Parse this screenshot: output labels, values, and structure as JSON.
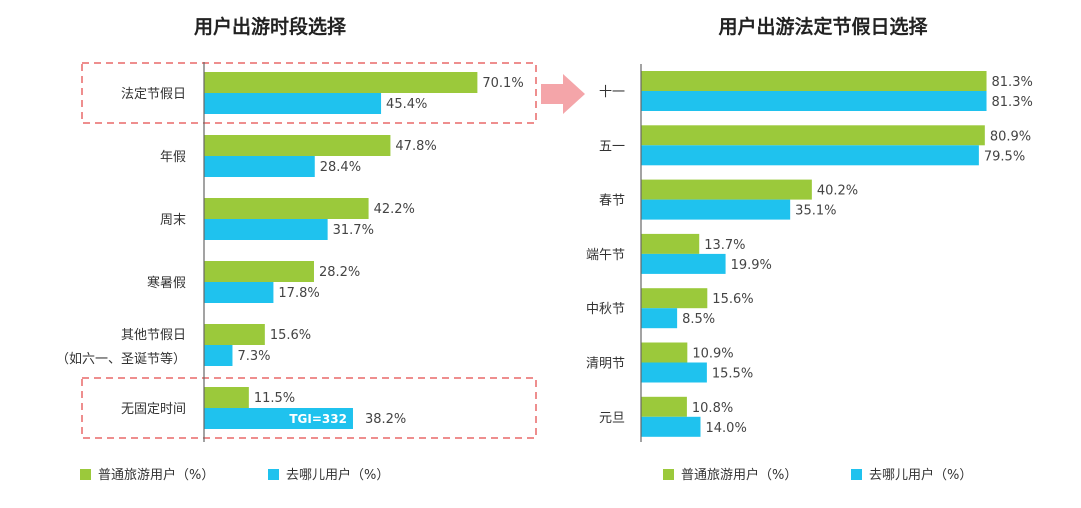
{
  "colors": {
    "green": "#9BC93B",
    "blue": "#1FC2EE",
    "dash": "#EE8E8E",
    "arrow": "#F4A5A9",
    "axis": "#666666"
  },
  "legend": {
    "series1": "普通旅游用户（%）",
    "series2": "去哪儿用户（%）"
  },
  "chart_data": [
    {
      "type": "bar",
      "orientation": "horizontal",
      "title": "用户出游时段选择",
      "categories": [
        {
          "label": "法定节假日"
        },
        {
          "label": "年假"
        },
        {
          "label": "周末"
        },
        {
          "label": "寒暑假"
        },
        {
          "label": "其他节假日",
          "label2": "（如六一、圣诞节等）"
        },
        {
          "label": "无固定时间"
        }
      ],
      "series": [
        {
          "name": "普通旅游用户（%）",
          "values": [
            70.1,
            47.8,
            42.2,
            28.2,
            15.6,
            11.5
          ],
          "labels": [
            "70.1%",
            "47.8%",
            "42.2%",
            "28.2%",
            "15.6%",
            "11.5%"
          ]
        },
        {
          "name": "去哪儿用户（%）",
          "values": [
            45.4,
            28.4,
            31.7,
            17.8,
            7.3,
            38.2
          ],
          "labels": [
            "45.4%",
            "28.4%",
            "31.7%",
            "17.8%",
            "7.3%",
            "38.2%"
          ]
        }
      ],
      "annotations": [
        {
          "category_index": 5,
          "series_index": 1,
          "text": "TGI=332"
        }
      ],
      "highlighted_categories": [
        0,
        5
      ],
      "xlim": [
        0,
        100
      ]
    },
    {
      "type": "bar",
      "orientation": "horizontal",
      "title": "用户出游法定节假日选择",
      "categories": [
        {
          "label": "十一"
        },
        {
          "label": "五一"
        },
        {
          "label": "春节"
        },
        {
          "label": "端午节"
        },
        {
          "label": "中秋节"
        },
        {
          "label": "清明节"
        },
        {
          "label": "元旦"
        }
      ],
      "series": [
        {
          "name": "普通旅游用户（%）",
          "values": [
            81.3,
            80.9,
            40.2,
            13.7,
            15.6,
            10.9,
            10.8
          ],
          "labels": [
            "81.3%",
            "80.9%",
            "40.2%",
            "13.7%",
            "15.6%",
            "10.9%",
            "10.8%"
          ]
        },
        {
          "name": "去哪儿用户（%）",
          "values": [
            81.3,
            79.5,
            35.1,
            19.9,
            8.5,
            15.5,
            14.0
          ],
          "labels": [
            "81.3%",
            "79.5%",
            "35.1%",
            "19.9%",
            "8.5%",
            "15.5%",
            "14.0%"
          ]
        }
      ],
      "xlim": [
        0,
        100
      ]
    }
  ]
}
